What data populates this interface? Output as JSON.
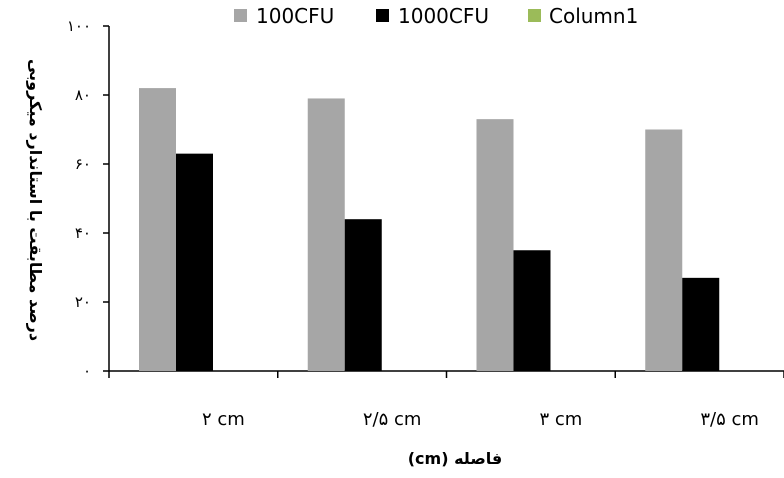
{
  "chart_data": {
    "type": "bar",
    "categories": [
      "۲ cm",
      "۲/۵ cm",
      "۳ cm",
      "۳/۵ cm"
    ],
    "series": [
      {
        "name": "100CFU",
        "values": [
          82,
          79,
          73,
          70
        ],
        "color": "#a6a6a6"
      },
      {
        "name": "1000CFU",
        "values": [
          63,
          44,
          35,
          27
        ],
        "color": "#000000"
      },
      {
        "name": "Column1",
        "values": [
          0,
          0,
          0,
          0
        ],
        "color": "#9bbb59"
      }
    ],
    "ylim": [
      0,
      100
    ],
    "yticks": [
      0,
      20,
      40,
      60,
      80,
      100
    ],
    "ytick_labels": [
      "۰",
      "۲۰",
      "۴۰",
      "۶۰",
      "۸۰",
      "۱۰۰"
    ],
    "xlabel": "فاصله (cm)",
    "ylabel": "درصد مطابقت با استاندارد میکروبی",
    "legend_position": "top",
    "grid": false
  }
}
